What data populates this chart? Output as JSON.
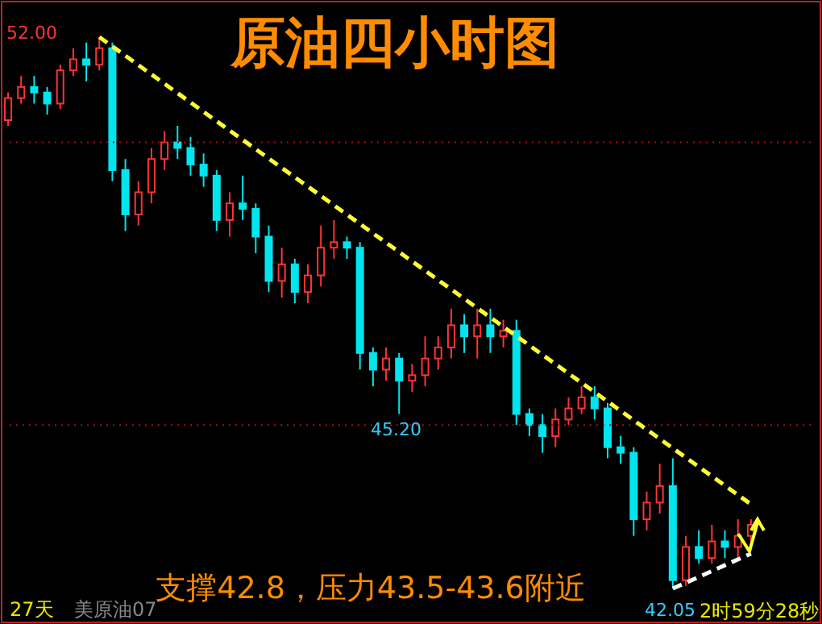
{
  "chart_data": {
    "type": "candlestick",
    "title": "原油四小时图",
    "categories": [
      null,
      null,
      null,
      null,
      null,
      null,
      null,
      null,
      null,
      null,
      null,
      null,
      null,
      null,
      null,
      null,
      null,
      null,
      null,
      null,
      null,
      null,
      null,
      null,
      null,
      null,
      null,
      null,
      null,
      null,
      null,
      null,
      null,
      null,
      null,
      null,
      null,
      null,
      null,
      null,
      null,
      null,
      null,
      null,
      null,
      null,
      null,
      null,
      null,
      null,
      null,
      null,
      null,
      null,
      null,
      null,
      null,
      null
    ],
    "ohlc": [
      [
        50.5,
        51.0,
        50.4,
        50.9
      ],
      [
        50.9,
        51.3,
        50.8,
        51.1
      ],
      [
        51.1,
        51.3,
        50.8,
        51.0
      ],
      [
        51.0,
        51.1,
        50.6,
        50.8
      ],
      [
        50.8,
        51.5,
        50.7,
        51.4
      ],
      [
        51.4,
        51.8,
        51.3,
        51.6
      ],
      [
        51.6,
        51.9,
        51.2,
        51.5
      ],
      [
        51.5,
        52.0,
        51.4,
        51.8
      ],
      [
        51.8,
        51.9,
        49.4,
        49.6
      ],
      [
        49.6,
        49.8,
        48.5,
        48.8
      ],
      [
        48.8,
        49.4,
        48.6,
        49.2
      ],
      [
        49.2,
        50.0,
        49.0,
        49.8
      ],
      [
        49.8,
        50.3,
        49.6,
        50.1
      ],
      [
        50.1,
        50.4,
        49.8,
        50.0
      ],
      [
        50.0,
        50.2,
        49.5,
        49.7
      ],
      [
        49.7,
        49.9,
        49.3,
        49.5
      ],
      [
        49.5,
        49.6,
        48.5,
        48.7
      ],
      [
        48.7,
        49.2,
        48.4,
        49.0
      ],
      [
        49.0,
        49.5,
        48.7,
        48.9
      ],
      [
        48.9,
        49.0,
        48.1,
        48.4
      ],
      [
        48.4,
        48.6,
        47.4,
        47.6
      ],
      [
        47.6,
        48.2,
        47.3,
        47.9
      ],
      [
        47.9,
        48.0,
        47.2,
        47.4
      ],
      [
        47.4,
        47.9,
        47.2,
        47.7
      ],
      [
        47.7,
        48.6,
        47.5,
        48.2
      ],
      [
        48.2,
        48.7,
        48.0,
        48.3
      ],
      [
        48.3,
        48.4,
        48.0,
        48.2
      ],
      [
        48.2,
        48.3,
        46.0,
        46.3
      ],
      [
        46.3,
        46.4,
        45.7,
        46.0
      ],
      [
        46.0,
        46.4,
        45.8,
        46.2
      ],
      [
        46.2,
        46.3,
        45.2,
        45.8
      ],
      [
        45.8,
        46.1,
        45.6,
        45.9
      ],
      [
        45.9,
        46.6,
        45.7,
        46.2
      ],
      [
        46.2,
        46.6,
        46.0,
        46.4
      ],
      [
        46.4,
        47.1,
        46.2,
        46.8
      ],
      [
        46.8,
        47.0,
        46.3,
        46.6
      ],
      [
        46.6,
        47.1,
        46.2,
        46.8
      ],
      [
        46.8,
        47.1,
        46.3,
        46.6
      ],
      [
        46.6,
        46.9,
        46.4,
        46.7
      ],
      [
        46.7,
        46.9,
        45.0,
        45.2
      ],
      [
        45.2,
        45.3,
        44.8,
        45.0
      ],
      [
        45.0,
        45.2,
        44.5,
        44.8
      ],
      [
        44.8,
        45.3,
        44.6,
        45.1
      ],
      [
        45.1,
        45.5,
        45.0,
        45.3
      ],
      [
        45.3,
        45.7,
        45.2,
        45.5
      ],
      [
        45.5,
        45.7,
        45.1,
        45.3
      ],
      [
        45.3,
        45.4,
        44.4,
        44.6
      ],
      [
        44.6,
        44.8,
        44.3,
        44.5
      ],
      [
        44.5,
        44.6,
        43.0,
        43.3
      ],
      [
        43.3,
        43.8,
        43.1,
        43.6
      ],
      [
        43.6,
        44.3,
        43.4,
        43.9
      ],
      [
        43.9,
        44.4,
        42.05,
        42.2
      ],
      [
        42.2,
        43.0,
        42.1,
        42.8
      ],
      [
        42.8,
        43.1,
        42.5,
        42.6
      ],
      [
        42.6,
        43.2,
        42.5,
        42.9
      ],
      [
        42.9,
        43.1,
        42.6,
        42.8
      ],
      [
        42.8,
        43.3,
        42.6,
        43.0
      ],
      [
        43.0,
        43.3,
        42.9,
        43.2
      ]
    ],
    "colors": [
      "#ff3333",
      "#ff3333",
      "#00e5ee",
      "#00e5ee",
      "#ff3333",
      "#ff3333",
      "#00e5ee",
      "#ff3333",
      "#00e5ee",
      "#00e5ee",
      "#ff3333",
      "#ff3333",
      "#ff3333",
      "#00e5ee",
      "#00e5ee",
      "#00e5ee",
      "#00e5ee",
      "#ff3333",
      "#00e5ee",
      "#00e5ee",
      "#00e5ee",
      "#ff3333",
      "#00e5ee",
      "#ff3333",
      "#ff3333",
      "#ff3333",
      "#00e5ee",
      "#00e5ee",
      "#00e5ee",
      "#ff3333",
      "#00e5ee",
      "#ff3333",
      "#ff3333",
      "#ff3333",
      "#ff3333",
      "#00e5ee",
      "#ff3333",
      "#00e5ee",
      "#ff3333",
      "#00e5ee",
      "#00e5ee",
      "#00e5ee",
      "#ff3333",
      "#ff3333",
      "#ff3333",
      "#00e5ee",
      "#00e5ee",
      "#00e5ee",
      "#00e5ee",
      "#ff3333",
      "#ff3333",
      "#00e5ee",
      "#ff3333",
      "#00e5ee",
      "#ff3333",
      "#00e5ee",
      "#ff3333",
      "#ff3333"
    ],
    "annotations": [
      "支撑42.8，压力43.5-43.6附近",
      "2时59分28秒",
      "27天",
      "美原油07",
      "52.00",
      "45.20",
      "42.05"
    ],
    "series": [
      {
        "type": "line",
        "color": "#ffff33",
        "line_style": "dashed",
        "values": [
          null,
          null,
          null,
          null,
          null,
          null,
          null,
          52.0,
          null,
          null,
          null,
          null,
          null,
          null,
          null,
          null,
          null,
          null,
          null,
          null,
          null,
          null,
          null,
          null,
          null,
          null,
          null,
          null,
          null,
          null,
          null,
          null,
          null,
          null,
          null,
          null,
          null,
          null,
          null,
          null,
          null,
          null,
          null,
          null,
          null,
          null,
          null,
          null,
          null,
          null,
          null,
          null,
          null,
          null,
          null,
          null,
          null,
          43.57
        ]
      },
      {
        "type": "line",
        "color": "#ffffff",
        "line_style": "dashed",
        "values": [
          null,
          null,
          null,
          null,
          null,
          null,
          null,
          null,
          null,
          null,
          null,
          null,
          null,
          null,
          null,
          null,
          null,
          null,
          null,
          null,
          null,
          null,
          null,
          null,
          null,
          null,
          null,
          null,
          null,
          null,
          null,
          null,
          null,
          null,
          null,
          null,
          null,
          null,
          null,
          null,
          null,
          null,
          null,
          null,
          null,
          null,
          null,
          null,
          null,
          null,
          null,
          42.05,
          null,
          null,
          null,
          null,
          null,
          42.68
        ]
      }
    ],
    "ref_lines": [
      {
        "axis": "y",
        "value": 50.1,
        "color": "#a01010",
        "line_style": "dotted"
      },
      {
        "axis": "y",
        "value": 45.0,
        "color": "#a01010",
        "line_style": "dotted"
      }
    ]
  }
}
